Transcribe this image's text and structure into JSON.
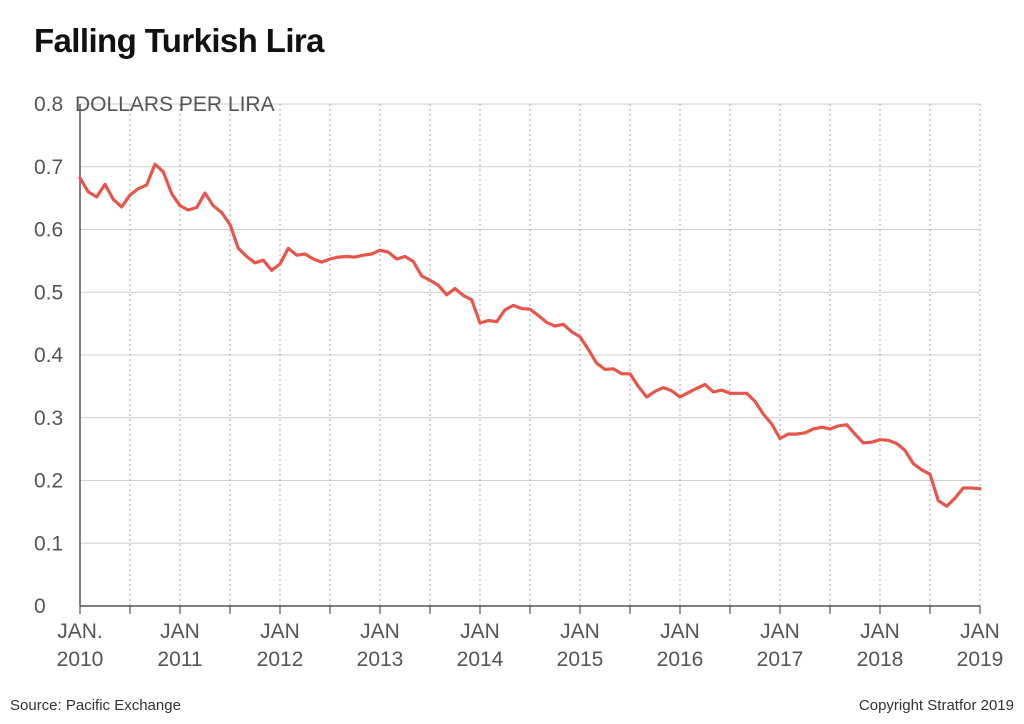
{
  "title": "Falling Turkish Lira",
  "source": "Source: Pacific Exchange",
  "copyright": "Copyright Stratfor 2019",
  "colors": {
    "line": "#e8554a",
    "grid": "#cfcfcf",
    "text": "#555555"
  },
  "chart_data": {
    "type": "line",
    "title": "Falling Turkish Lira",
    "ylabel": "DOLLARS PER LIRA",
    "ylim": [
      0,
      0.8
    ],
    "yticks": [
      "0",
      "0.1",
      "0.2",
      "0.3",
      "0.4",
      "0.5",
      "0.6",
      "0.7",
      "0.8"
    ],
    "xlim": [
      "2010-01",
      "2019-01"
    ],
    "x_tick_labels": [
      [
        "JAN.",
        "2010"
      ],
      [
        "JAN",
        "2011"
      ],
      [
        "JAN",
        "2012"
      ],
      [
        "JAN",
        "2013"
      ],
      [
        "JAN",
        "2014"
      ],
      [
        "JAN",
        "2015"
      ],
      [
        "JAN",
        "2016"
      ],
      [
        "JAN",
        "2017"
      ],
      [
        "JAN",
        "2018"
      ],
      [
        "JAN",
        "2019"
      ]
    ],
    "grid": {
      "horizontal": true,
      "vertical_dotted_every_6_months": true
    },
    "series": [
      {
        "x": [
          "2010-01",
          "2010-02",
          "2010-03",
          "2010-04",
          "2010-05",
          "2010-06",
          "2010-07",
          "2010-08",
          "2010-09",
          "2010-10",
          "2010-11",
          "2010-12",
          "2011-01",
          "2011-02",
          "2011-03",
          "2011-04",
          "2011-05",
          "2011-06",
          "2011-07",
          "2011-08",
          "2011-09",
          "2011-10",
          "2011-11",
          "2011-12",
          "2012-01",
          "2012-02",
          "2012-03",
          "2012-04",
          "2012-05",
          "2012-06",
          "2012-07",
          "2012-08",
          "2012-09",
          "2012-10",
          "2012-11",
          "2012-12",
          "2013-01",
          "2013-02",
          "2013-03",
          "2013-04",
          "2013-05",
          "2013-06",
          "2013-07",
          "2013-08",
          "2013-09",
          "2013-10",
          "2013-11",
          "2013-12",
          "2014-01",
          "2014-02",
          "2014-03",
          "2014-04",
          "2014-05",
          "2014-06",
          "2014-07",
          "2014-08",
          "2014-09",
          "2014-10",
          "2014-11",
          "2014-12",
          "2015-01",
          "2015-02",
          "2015-03",
          "2015-04",
          "2015-05",
          "2015-06",
          "2015-07",
          "2015-08",
          "2015-09",
          "2015-10",
          "2015-11",
          "2015-12",
          "2016-01",
          "2016-02",
          "2016-03",
          "2016-04",
          "2016-05",
          "2016-06",
          "2016-07",
          "2016-08",
          "2016-09",
          "2016-10",
          "2016-11",
          "2016-12",
          "2017-01",
          "2017-02",
          "2017-03",
          "2017-04",
          "2017-05",
          "2017-06",
          "2017-07",
          "2017-08",
          "2017-09",
          "2017-10",
          "2017-11",
          "2017-12",
          "2018-01",
          "2018-02",
          "2018-03",
          "2018-04",
          "2018-05",
          "2018-06",
          "2018-07",
          "2018-08",
          "2018-09",
          "2018-10",
          "2018-11",
          "2018-12",
          "2019-01"
        ],
        "values": [
          0.682,
          0.66,
          0.652,
          0.672,
          0.648,
          0.636,
          0.655,
          0.665,
          0.671,
          0.704,
          0.692,
          0.657,
          0.638,
          0.631,
          0.635,
          0.658,
          0.638,
          0.627,
          0.608,
          0.57,
          0.557,
          0.547,
          0.551,
          0.535,
          0.545,
          0.57,
          0.559,
          0.561,
          0.553,
          0.548,
          0.553,
          0.556,
          0.557,
          0.556,
          0.559,
          0.561,
          0.567,
          0.564,
          0.553,
          0.557,
          0.549,
          0.526,
          0.519,
          0.511,
          0.496,
          0.506,
          0.495,
          0.488,
          0.451,
          0.455,
          0.453,
          0.472,
          0.479,
          0.474,
          0.473,
          0.463,
          0.452,
          0.446,
          0.449,
          0.437,
          0.429,
          0.409,
          0.387,
          0.377,
          0.378,
          0.37,
          0.37,
          0.35,
          0.333,
          0.342,
          0.348,
          0.343,
          0.333,
          0.34,
          0.347,
          0.353,
          0.341,
          0.344,
          0.339,
          0.339,
          0.339,
          0.326,
          0.306,
          0.29,
          0.267,
          0.274,
          0.274,
          0.276,
          0.282,
          0.285,
          0.282,
          0.287,
          0.289,
          0.274,
          0.26,
          0.261,
          0.265,
          0.264,
          0.259,
          0.248,
          0.227,
          0.217,
          0.21,
          0.168,
          0.159,
          0.172,
          0.188,
          0.188,
          0.187
        ]
      }
    ]
  }
}
